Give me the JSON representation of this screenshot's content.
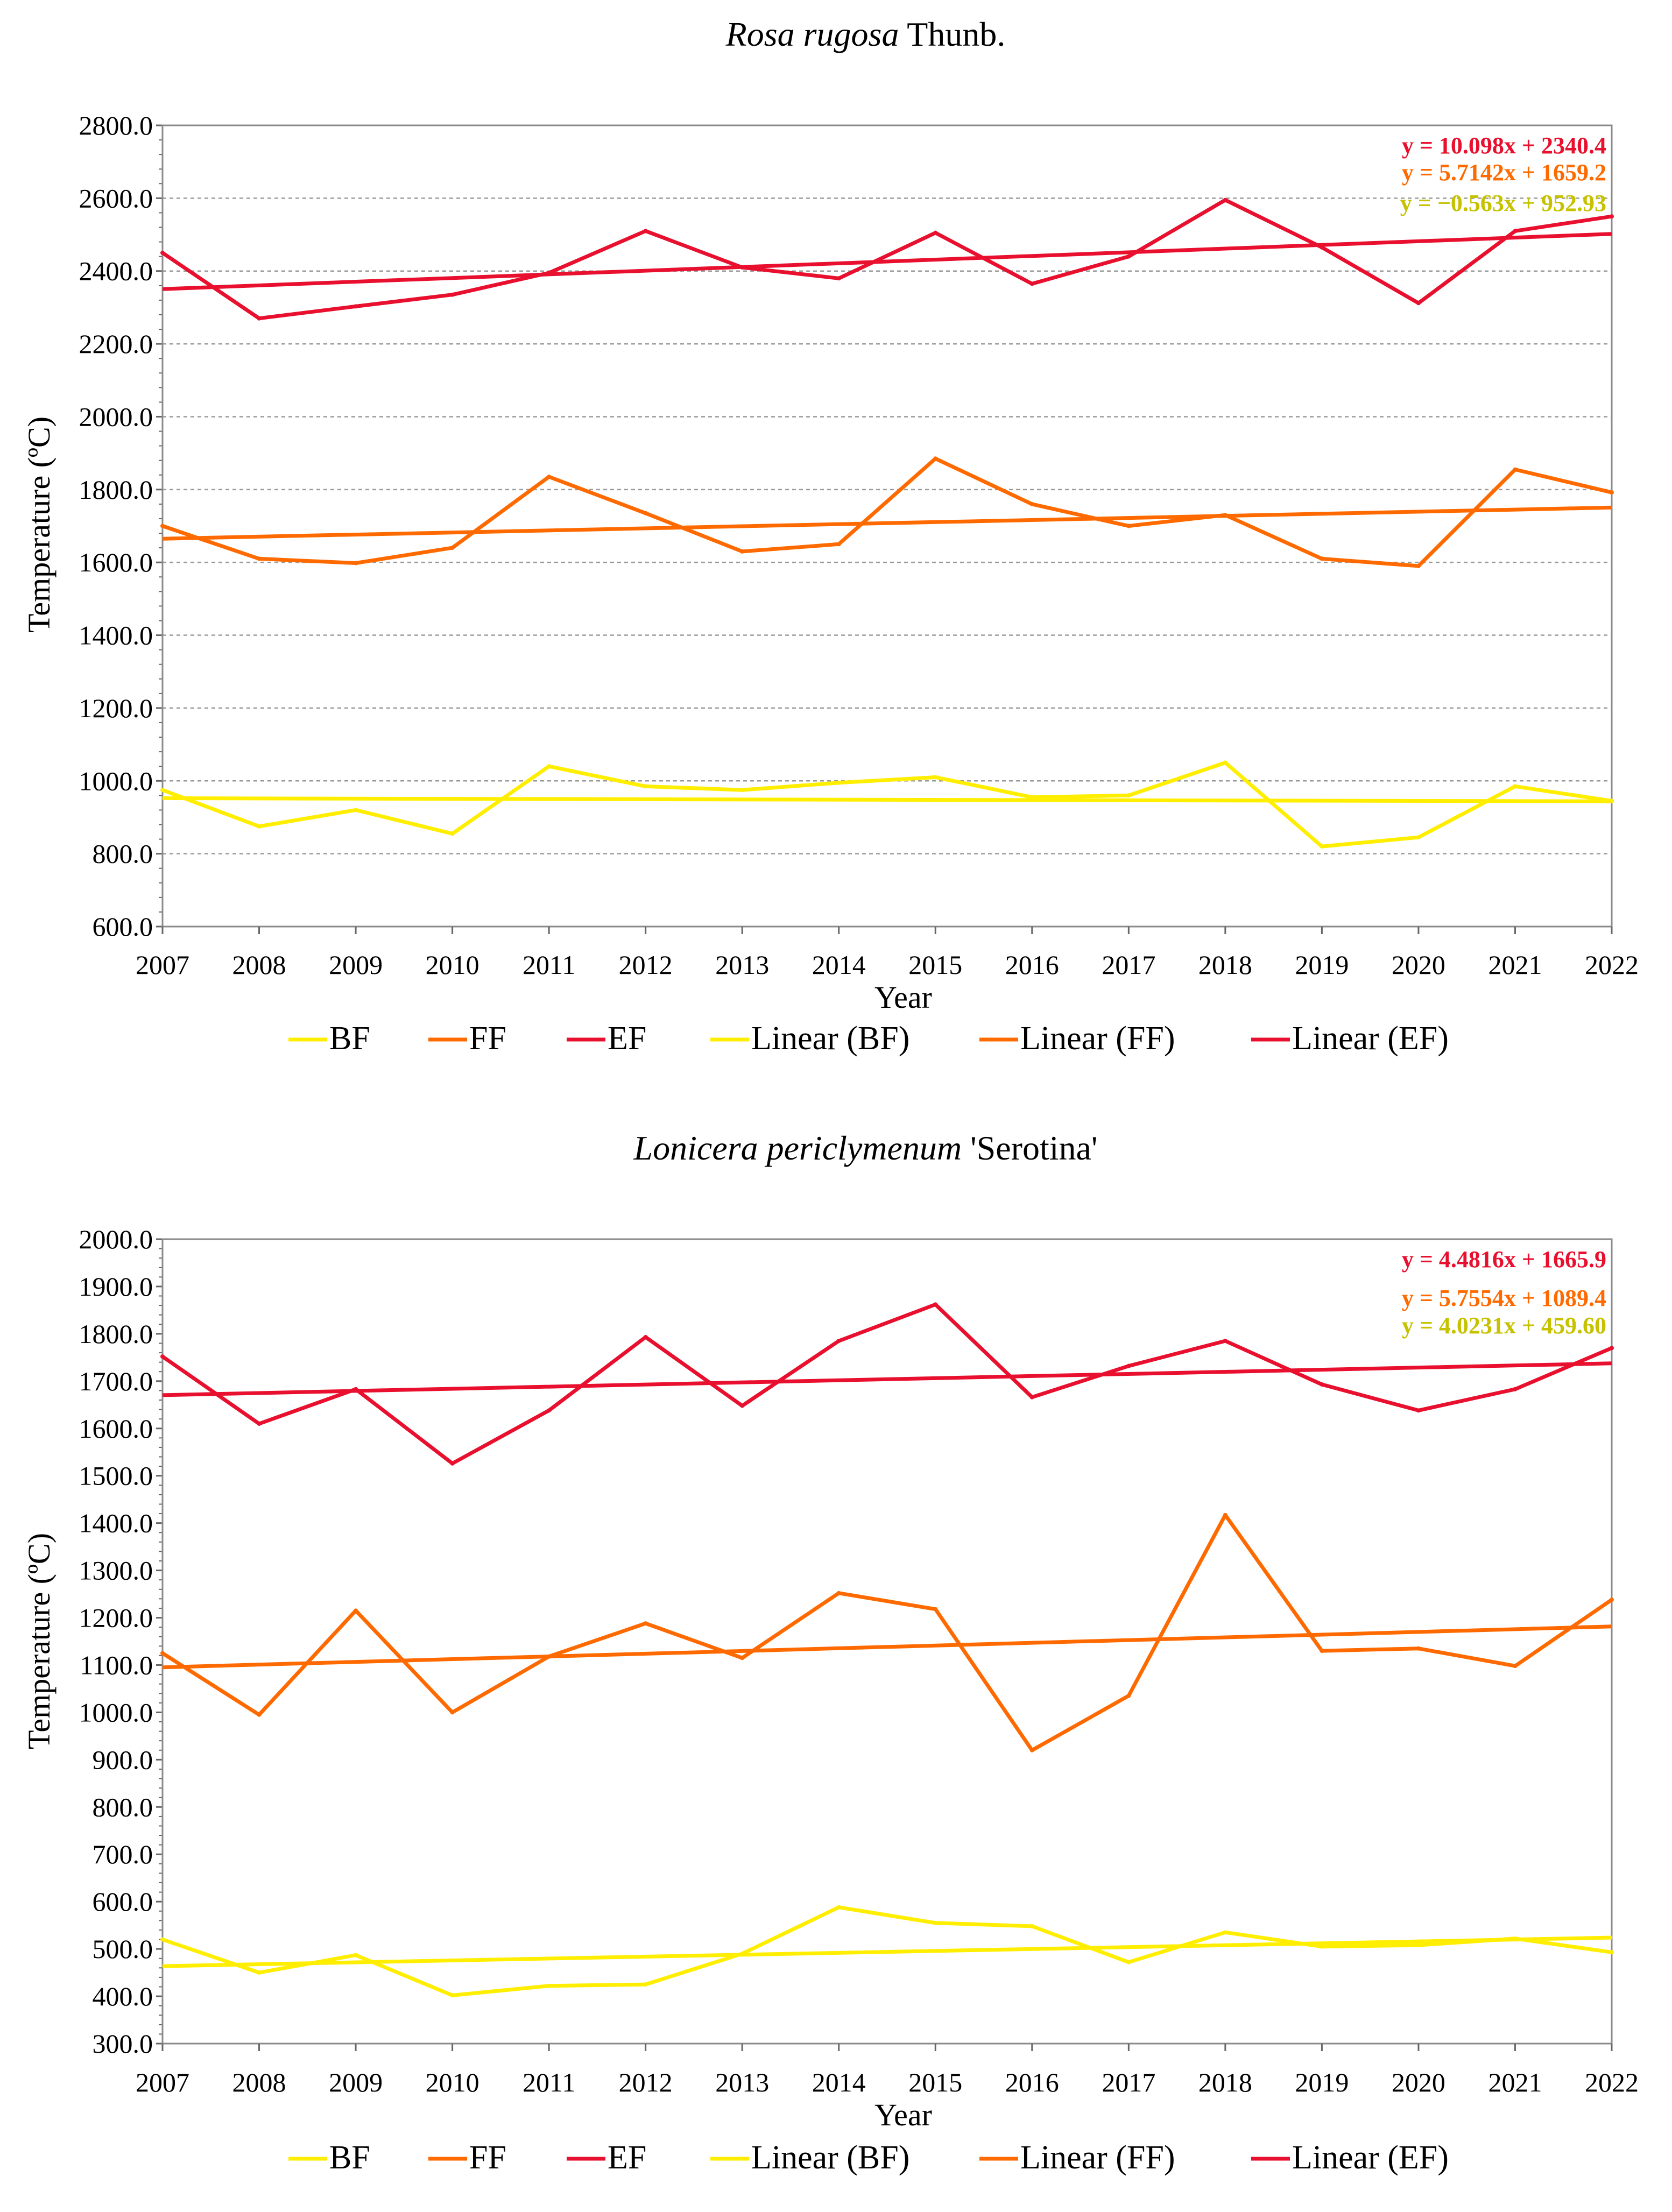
{
  "colors": {
    "BF": "#ffee00",
    "FF": "#ff6a00",
    "EF": "#e8102e",
    "eq_BF": "#c6c200",
    "eq_FF": "#ff6a00",
    "eq_EF": "#e8102e",
    "grid": "#9a9a9a"
  },
  "chart_data": [
    {
      "type": "line",
      "title_italic": "Rosa rugosa",
      "title_rest": " Thunb.",
      "xlabel": "Year",
      "ylabel": "Temperature  (ºC)",
      "x": [
        2007,
        2008,
        2009,
        2010,
        2011,
        2012,
        2013,
        2014,
        2015,
        2016,
        2017,
        2018,
        2019,
        2020,
        2021,
        2022
      ],
      "ylim": [
        600,
        2800
      ],
      "ystep": 200,
      "ytick_labels": [
        "600.0",
        "800.0",
        "1000.0",
        "1200.0",
        "1400.0",
        "1600.0",
        "1800.0",
        "2000.0",
        "2200.0",
        "2400.0",
        "2600.0",
        "2800.0"
      ],
      "grid": true,
      "series": [
        {
          "name": "BF",
          "values": [
            975,
            875,
            920,
            855,
            1040,
            985,
            975,
            995,
            1010,
            955,
            960,
            1050,
            820,
            845,
            985,
            945
          ]
        },
        {
          "name": "FF",
          "values": [
            1700,
            1610,
            1598,
            1640,
            1835,
            1735,
            1630,
            1650,
            1885,
            1760,
            1700,
            1730,
            1610,
            1590,
            1855,
            1792
          ]
        },
        {
          "name": "EF",
          "values": [
            2450,
            2270,
            2303,
            2335,
            2395,
            2510,
            2410,
            2380,
            2505,
            2365,
            2440,
            2595,
            2465,
            2312,
            2510,
            2550
          ]
        }
      ],
      "trendlines": [
        {
          "name": "Linear (BF)",
          "slope": -0.563,
          "intercept": 952.93,
          "equation": "y = −0.563x + 952.93"
        },
        {
          "name": "Linear (FF)",
          "slope": 5.7142,
          "intercept": 1659.2,
          "equation": "y = 5.7142x + 1659.2"
        },
        {
          "name": "Linear (EF)",
          "slope": 10.098,
          "intercept": 2340.4,
          "equation": "y = 10.098x + 2340.4"
        }
      ],
      "legend": [
        "BF",
        "FF",
        "EF",
        "Linear (BF)",
        "Linear (FF)",
        "Linear (EF)"
      ]
    },
    {
      "type": "line",
      "title_italic": "Lonicera periclymenum",
      "title_rest": " 'Serotina'",
      "xlabel": "Year",
      "ylabel": "Temperature  (ºC)",
      "x": [
        2007,
        2008,
        2009,
        2010,
        2011,
        2012,
        2013,
        2014,
        2015,
        2016,
        2017,
        2018,
        2019,
        2020,
        2021,
        2022
      ],
      "ylim": [
        300,
        2000
      ],
      "ystep": 100,
      "ytick_labels": [
        "300.0",
        "400.0",
        "500.0",
        "600.0",
        "700.0",
        "800.0",
        "900.0",
        "1000.0",
        "1100.0",
        "1200.0",
        "1300.0",
        "1400.0",
        "1500.0",
        "1600.0",
        "1700.0",
        "1800.0",
        "1900.0",
        "2000.0"
      ],
      "grid": false,
      "series": [
        {
          "name": "BF",
          "values": [
            520,
            450,
            487,
            402,
            422,
            425,
            490,
            588,
            555,
            548,
            472,
            535,
            505,
            508,
            522,
            493
          ]
        },
        {
          "name": "FF",
          "values": [
            1125,
            995,
            1215,
            1000,
            1118,
            1188,
            1115,
            1252,
            1218,
            920,
            1035,
            1417,
            1130,
            1135,
            1098,
            1238
          ]
        },
        {
          "name": "EF",
          "values": [
            1752,
            1610,
            1683,
            1526,
            1638,
            1793,
            1648,
            1785,
            1862,
            1666,
            1732,
            1785,
            1693,
            1638,
            1683,
            1770
          ]
        }
      ],
      "trendlines": [
        {
          "name": "Linear (BF)",
          "slope": 4.0231,
          "intercept": 459.6,
          "equation": "y = 4.0231x + 459.60"
        },
        {
          "name": "Linear (FF)",
          "slope": 5.7554,
          "intercept": 1089.4,
          "equation": "y = 5.7554x + 1089.4"
        },
        {
          "name": "Linear (EF)",
          "slope": 4.4816,
          "intercept": 1665.9,
          "equation": "y = 4.4816x + 1665.9"
        }
      ],
      "legend": [
        "BF",
        "FF",
        "EF",
        "Linear (BF)",
        "Linear (FF)",
        "Linear (EF)"
      ]
    }
  ]
}
